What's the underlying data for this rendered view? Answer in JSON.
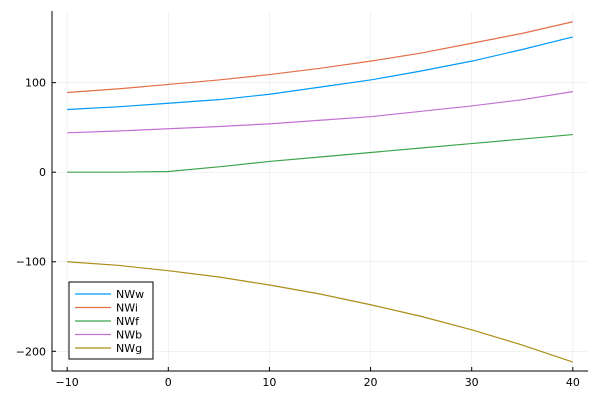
{
  "chart_data": {
    "type": "line",
    "title": "",
    "xlabel": "",
    "ylabel": "",
    "xlim": [
      -11.5,
      41.5
    ],
    "ylim": [
      -222,
      180
    ],
    "grid": true,
    "legend_position": "bottom-left",
    "x_ticks": [
      {
        "value": -10,
        "label": "−10"
      },
      {
        "value": 0,
        "label": "0"
      },
      {
        "value": 10,
        "label": "10"
      },
      {
        "value": 20,
        "label": "20"
      },
      {
        "value": 30,
        "label": "30"
      },
      {
        "value": 40,
        "label": "40"
      }
    ],
    "y_ticks": [
      {
        "value": 100,
        "label": "100"
      },
      {
        "value": 0,
        "label": "0"
      },
      {
        "value": -100,
        "label": "−100"
      },
      {
        "value": -200,
        "label": "−200"
      }
    ],
    "x": [
      -10,
      -5,
      0,
      5,
      10,
      15,
      20,
      25,
      30,
      35,
      40
    ],
    "series": [
      {
        "name": "NWw",
        "color": "#009AFA",
        "values": [
          70,
          73,
          77,
          81,
          87,
          95,
          103,
          113,
          124,
          137,
          151
        ]
      },
      {
        "name": "NWi",
        "color": "#E36F47",
        "values": [
          89,
          93,
          98,
          103,
          109,
          116,
          124,
          133,
          144,
          155,
          168
        ]
      },
      {
        "name": "NWf",
        "color": "#3EA44E",
        "values": [
          0,
          0,
          0.8,
          6,
          12,
          17,
          22,
          27,
          32,
          37,
          42
        ]
      },
      {
        "name": "NWb",
        "color": "#C271D2",
        "values": [
          44,
          46,
          48.5,
          51,
          54,
          58,
          62,
          68,
          74,
          81,
          90
        ]
      },
      {
        "name": "NWg",
        "color": "#AC8D18",
        "values": [
          -100,
          -104,
          -110,
          -117,
          -126,
          -136,
          -148,
          -161,
          -176,
          -193,
          -212
        ]
      }
    ]
  }
}
